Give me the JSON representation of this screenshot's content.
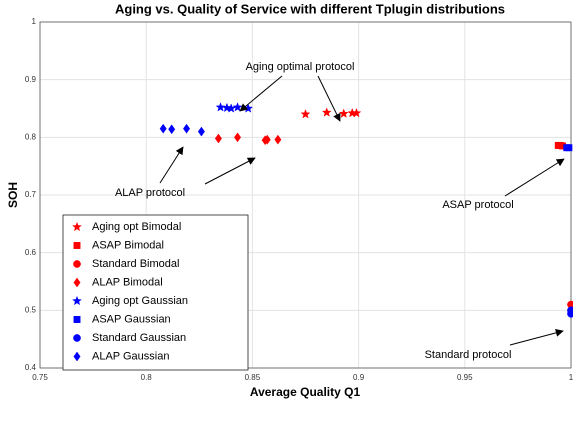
{
  "chart_data": {
    "type": "scatter",
    "title": "Aging vs. Quality of Service with different Tplugin distributions",
    "xlabel": "Average Quality Q1",
    "ylabel": "SOH",
    "xlim": [
      0.75,
      1
    ],
    "xticks": [
      0.75,
      0.8,
      0.85,
      0.9,
      0.95,
      1
    ],
    "ylim": [
      0.4,
      1
    ],
    "yticks": [
      0.4,
      0.5,
      0.6,
      0.7,
      0.8,
      0.9,
      1
    ],
    "grid": true,
    "legend": "lower left",
    "annotations": [
      "Aging optimal protocol",
      "ALAP protocol",
      "ASAP protocol",
      "Standard protocol"
    ],
    "series": [
      {
        "name": "Aging opt Bimodal",
        "color": "#ff0000",
        "marker": "star",
        "x": [
          0.875,
          0.885,
          0.893,
          0.897,
          0.899
        ],
        "values": [
          0.84,
          0.843,
          0.841,
          0.842,
          0.842
        ]
      },
      {
        "name": "ASAP Bimodal",
        "color": "#ff0000",
        "marker": "square",
        "x": [
          0.994,
          0.995,
          0.996
        ],
        "values": [
          0.786,
          0.786,
          0.785
        ]
      },
      {
        "name": "Standard Bimodal",
        "color": "#ff0000",
        "marker": "circle",
        "x": [
          1.0
        ],
        "values": [
          0.51
        ]
      },
      {
        "name": "ALAP Bimodal",
        "color": "#ff0000",
        "marker": "diamond",
        "x": [
          0.834,
          0.843,
          0.856,
          0.857,
          0.862
        ],
        "values": [
          0.798,
          0.8,
          0.795,
          0.796,
          0.796
        ]
      },
      {
        "name": "Aging opt Gaussian",
        "color": "#0000ff",
        "marker": "star",
        "x": [
          0.835,
          0.838,
          0.84,
          0.843,
          0.848
        ],
        "values": [
          0.852,
          0.851,
          0.85,
          0.852,
          0.85
        ]
      },
      {
        "name": "ASAP Gaussian",
        "color": "#0000ff",
        "marker": "square",
        "x": [
          0.998,
          0.999
        ],
        "values": [
          0.782,
          0.782
        ]
      },
      {
        "name": "Standard Gaussian",
        "color": "#0000ff",
        "marker": "circle",
        "x": [
          1.0,
          1.0
        ],
        "values": [
          0.494,
          0.5
        ]
      },
      {
        "name": "ALAP Gaussian",
        "color": "#0000ff",
        "marker": "diamond",
        "x": [
          0.808,
          0.812,
          0.819,
          0.826
        ],
        "values": [
          0.815,
          0.814,
          0.815,
          0.81
        ]
      }
    ]
  }
}
